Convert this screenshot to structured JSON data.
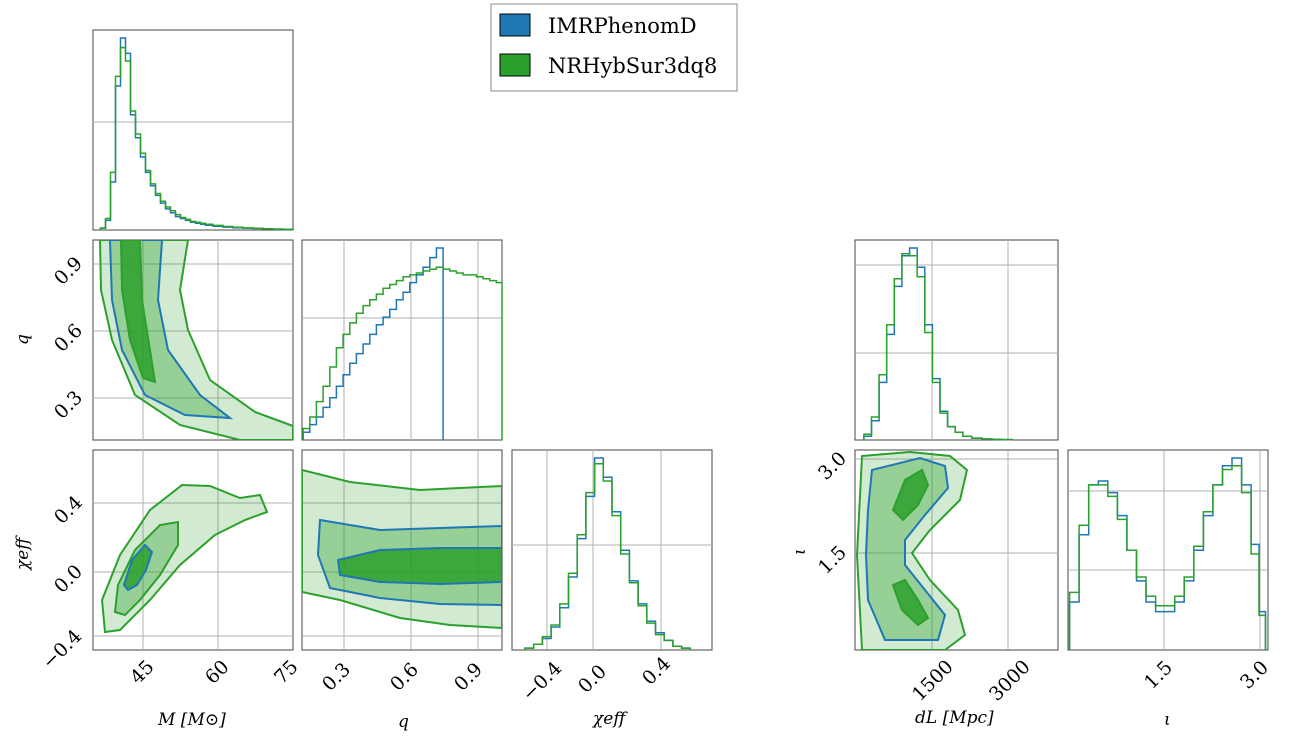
{
  "colors": {
    "imr": "#1f77b4",
    "nr": "#2ca02c",
    "grid": "#b0b0b0",
    "frame": "#444444"
  },
  "legend": {
    "entries": [
      {
        "label": "IMRPhenomD",
        "color": "#1f77b4"
      },
      {
        "label": "NRHybSur3dq8",
        "color": "#2ca02c"
      }
    ]
  },
  "axes_labels": {
    "M": "M [M⊙]",
    "q": "q",
    "chi_eff": "χeff",
    "dL": "dL [Mpc]",
    "iota": "ι"
  },
  "chart_data": [
    {
      "type": "histogram",
      "parameter": "M",
      "xlim": [
        35,
        75
      ],
      "bin_width": 1,
      "series": [
        {
          "name": "IMRPhenomD",
          "x": [
            37,
            38,
            39,
            40,
            41,
            42,
            43,
            44,
            45,
            46,
            47,
            48,
            49,
            50,
            51,
            52,
            53,
            54,
            55,
            56,
            57,
            58,
            60,
            62,
            64,
            66,
            68,
            70,
            72,
            74
          ],
          "density": [
            0.01,
            0.05,
            0.25,
            0.75,
            1.0,
            0.92,
            0.6,
            0.48,
            0.38,
            0.3,
            0.23,
            0.18,
            0.14,
            0.11,
            0.09,
            0.07,
            0.06,
            0.05,
            0.04,
            0.035,
            0.03,
            0.025,
            0.02,
            0.015,
            0.012,
            0.01,
            0.008,
            0.006,
            0.004,
            0.003
          ]
        },
        {
          "name": "NRHybSur3dq8",
          "x": [
            37,
            38,
            39,
            40,
            41,
            42,
            43,
            44,
            45,
            46,
            47,
            48,
            49,
            50,
            51,
            52,
            53,
            54,
            55,
            56,
            57,
            58,
            60,
            62,
            64,
            66,
            68,
            70,
            72,
            74
          ],
          "density": [
            0.01,
            0.06,
            0.3,
            0.8,
            0.95,
            0.88,
            0.62,
            0.5,
            0.4,
            0.31,
            0.24,
            0.19,
            0.15,
            0.12,
            0.1,
            0.08,
            0.065,
            0.055,
            0.045,
            0.04,
            0.035,
            0.03,
            0.024,
            0.018,
            0.014,
            0.011,
            0.009,
            0.007,
            0.005,
            0.003
          ]
        }
      ]
    },
    {
      "type": "histogram",
      "parameter": "q",
      "xlim": [
        0.1,
        1.0
      ],
      "series": [
        {
          "name": "IMRPhenomD",
          "x": [
            0.12,
            0.15,
            0.18,
            0.21,
            0.24,
            0.27,
            0.3,
            0.33,
            0.36,
            0.39,
            0.42,
            0.45,
            0.48,
            0.51,
            0.54,
            0.57,
            0.6,
            0.63,
            0.66,
            0.69,
            0.72
          ],
          "density": [
            0.04,
            0.08,
            0.12,
            0.17,
            0.22,
            0.28,
            0.34,
            0.4,
            0.45,
            0.5,
            0.55,
            0.6,
            0.64,
            0.68,
            0.73,
            0.77,
            0.82,
            0.86,
            0.9,
            0.95,
            1.0
          ]
        },
        {
          "name": "NRHybSur3dq8",
          "x": [
            0.12,
            0.15,
            0.18,
            0.21,
            0.24,
            0.27,
            0.3,
            0.33,
            0.36,
            0.39,
            0.42,
            0.45,
            0.48,
            0.51,
            0.54,
            0.57,
            0.6,
            0.63,
            0.66,
            0.69,
            0.72,
            0.75,
            0.78,
            0.81,
            0.84,
            0.87,
            0.9,
            0.93,
            0.96,
            0.99
          ],
          "density": [
            0.06,
            0.12,
            0.2,
            0.28,
            0.38,
            0.48,
            0.55,
            0.61,
            0.66,
            0.7,
            0.73,
            0.76,
            0.79,
            0.81,
            0.83,
            0.85,
            0.86,
            0.87,
            0.88,
            0.89,
            0.9,
            0.89,
            0.88,
            0.87,
            0.86,
            0.86,
            0.85,
            0.84,
            0.83,
            0.82
          ]
        }
      ]
    },
    {
      "type": "histogram",
      "parameter": "chi_eff",
      "xlim": [
        -0.5,
        0.65
      ],
      "series": [
        {
          "name": "IMRPhenomD",
          "x": [
            -0.4,
            -0.35,
            -0.3,
            -0.25,
            -0.2,
            -0.15,
            -0.1,
            -0.05,
            0.0,
            0.05,
            0.1,
            0.15,
            0.2,
            0.25,
            0.3,
            0.35,
            0.4,
            0.45,
            0.5
          ],
          "density": [
            0.01,
            0.03,
            0.06,
            0.12,
            0.22,
            0.38,
            0.58,
            0.8,
            1.0,
            0.9,
            0.72,
            0.52,
            0.36,
            0.24,
            0.15,
            0.09,
            0.05,
            0.02,
            0.01
          ]
        },
        {
          "name": "NRHybSur3dq8",
          "x": [
            -0.4,
            -0.35,
            -0.3,
            -0.25,
            -0.2,
            -0.15,
            -0.1,
            -0.05,
            0.0,
            0.05,
            0.1,
            0.15,
            0.2,
            0.25,
            0.3,
            0.35,
            0.4,
            0.45,
            0.5
          ],
          "density": [
            0.01,
            0.03,
            0.07,
            0.13,
            0.24,
            0.4,
            0.6,
            0.82,
            0.97,
            0.88,
            0.7,
            0.5,
            0.35,
            0.23,
            0.14,
            0.08,
            0.05,
            0.02,
            0.01
          ]
        }
      ]
    },
    {
      "type": "histogram",
      "parameter": "dL",
      "xlim": [
        0,
        4000
      ],
      "series": [
        {
          "name": "IMRPhenomD",
          "x": [
            250,
            400,
            550,
            700,
            850,
            1000,
            1150,
            1300,
            1450,
            1600,
            1750,
            1900,
            2050,
            2200,
            2400,
            2600,
            2800,
            3000
          ],
          "density": [
            0.02,
            0.1,
            0.3,
            0.55,
            0.8,
            0.96,
            1.0,
            0.9,
            0.6,
            0.32,
            0.15,
            0.07,
            0.04,
            0.02,
            0.01,
            0.005,
            0.003,
            0.002
          ]
        },
        {
          "name": "NRHybSur3dq8",
          "x": [
            250,
            400,
            550,
            700,
            850,
            1000,
            1150,
            1300,
            1450,
            1600,
            1750,
            1900,
            2050,
            2200,
            2400,
            2600,
            2800,
            3000
          ],
          "density": [
            0.03,
            0.12,
            0.34,
            0.6,
            0.84,
            0.97,
            0.96,
            0.85,
            0.56,
            0.3,
            0.14,
            0.07,
            0.04,
            0.02,
            0.01,
            0.005,
            0.003,
            0.002
          ]
        }
      ]
    },
    {
      "type": "histogram",
      "parameter": "iota",
      "xlim": [
        0.0,
        3.14
      ],
      "series": [
        {
          "name": "IMRPhenomD",
          "x": [
            0.1,
            0.25,
            0.4,
            0.55,
            0.7,
            0.85,
            1.0,
            1.15,
            1.3,
            1.45,
            1.6,
            1.75,
            1.9,
            2.05,
            2.2,
            2.35,
            2.5,
            2.65,
            2.8,
            2.95,
            3.05
          ],
          "density": [
            0.25,
            0.6,
            0.86,
            0.88,
            0.82,
            0.7,
            0.52,
            0.36,
            0.25,
            0.2,
            0.2,
            0.25,
            0.36,
            0.52,
            0.7,
            0.86,
            0.96,
            1.0,
            0.86,
            0.55,
            0.2
          ]
        },
        {
          "name": "NRHybSur3dq8",
          "x": [
            0.1,
            0.25,
            0.4,
            0.55,
            0.7,
            0.85,
            1.0,
            1.15,
            1.3,
            1.45,
            1.6,
            1.75,
            1.9,
            2.05,
            2.2,
            2.35,
            2.5,
            2.65,
            2.8,
            2.95,
            3.05
          ],
          "density": [
            0.3,
            0.65,
            0.86,
            0.86,
            0.8,
            0.68,
            0.52,
            0.38,
            0.28,
            0.23,
            0.23,
            0.28,
            0.38,
            0.54,
            0.72,
            0.86,
            0.94,
            0.96,
            0.82,
            0.5,
            0.18
          ]
        }
      ]
    },
    {
      "type": "contour",
      "x_parameter": "M",
      "y_parameter": "q",
      "xlim": [
        35,
        75
      ],
      "ylim": [
        0.1,
        1.0
      ],
      "levels": [
        "50%",
        "90%",
        "99%"
      ],
      "series": [
        {
          "name": "IMRPhenomD",
          "ridge": [
            [
              39,
              1.0
            ],
            [
              39.5,
              0.85
            ],
            [
              40.5,
              0.7
            ],
            [
              42,
              0.55
            ],
            [
              44,
              0.42
            ],
            [
              47,
              0.3
            ],
            [
              52,
              0.22
            ],
            [
              60,
              0.16
            ],
            [
              70,
              0.12
            ]
          ]
        },
        {
          "name": "NRHybSur3dq8",
          "ridge": [
            [
              39,
              1.0
            ],
            [
              39.5,
              0.85
            ],
            [
              40.5,
              0.7
            ],
            [
              42,
              0.55
            ],
            [
              44,
              0.42
            ],
            [
              47,
              0.3
            ],
            [
              52,
              0.22
            ],
            [
              60,
              0.16
            ],
            [
              70,
              0.12
            ]
          ]
        }
      ],
      "xticks": [
        45,
        60,
        75
      ],
      "yticks": [
        0.3,
        0.6,
        0.9
      ]
    },
    {
      "type": "contour",
      "x_parameter": "M",
      "y_parameter": "chi_eff",
      "xlim": [
        35,
        75
      ],
      "ylim": [
        -0.42,
        0.72
      ],
      "levels": [
        "50%",
        "90%",
        "99%"
      ],
      "series": [
        {
          "name": "IMRPhenomD",
          "ridge": [
            [
              38,
              -0.3
            ],
            [
              41,
              -0.15
            ],
            [
              44,
              0.02
            ],
            [
              48,
              0.15
            ],
            [
              53,
              0.27
            ],
            [
              58,
              0.36
            ],
            [
              64,
              0.42
            ]
          ]
        },
        {
          "name": "NRHybSur3dq8",
          "ridge": [
            [
              38,
              -0.3
            ],
            [
              41,
              -0.15
            ],
            [
              44,
              0.02
            ],
            [
              48,
              0.15
            ],
            [
              53,
              0.27
            ],
            [
              58,
              0.36
            ],
            [
              64,
              0.42
            ]
          ]
        }
      ],
      "xticks": [
        45,
        60,
        75
      ],
      "yticks": [
        -0.4,
        0.0,
        0.4
      ]
    },
    {
      "type": "contour",
      "x_parameter": "q",
      "y_parameter": "chi_eff",
      "xlim": [
        0.1,
        1.0
      ],
      "ylim": [
        -0.42,
        0.72
      ],
      "levels": [
        "50%",
        "90%",
        "99%"
      ],
      "series": [
        {
          "name": "IMRPhenomD",
          "center": [
            0.55,
            0.01
          ]
        },
        {
          "name": "NRHybSur3dq8",
          "center": [
            0.6,
            0.02
          ]
        }
      ],
      "xticks": [
        0.3,
        0.6,
        0.9
      ]
    },
    {
      "type": "contour",
      "x_parameter": "dL",
      "y_parameter": "iota",
      "xlim": [
        0,
        4000
      ],
      "ylim": [
        0.0,
        3.14
      ],
      "levels": [
        "50%",
        "90%",
        "99%"
      ],
      "series": [
        {
          "name": "IMRPhenomD",
          "modes": [
            [
              1000,
              0.7
            ],
            [
              1000,
              2.5
            ]
          ]
        },
        {
          "name": "NRHybSur3dq8",
          "modes": [
            [
              1000,
              0.7
            ],
            [
              1000,
              2.5
            ]
          ]
        }
      ],
      "xticks": [
        1500,
        3000
      ],
      "yticks": [
        1.5,
        3.0
      ]
    }
  ],
  "tick_labels": {
    "M": [
      "45",
      "60",
      "75"
    ],
    "q": [
      "0.3",
      "0.6",
      "0.9"
    ],
    "chi_eff": [
      "−0.4",
      "0.0",
      "0.4"
    ],
    "dL": [
      "1500",
      "3000"
    ],
    "iota": [
      "1.5",
      "3.0"
    ]
  }
}
